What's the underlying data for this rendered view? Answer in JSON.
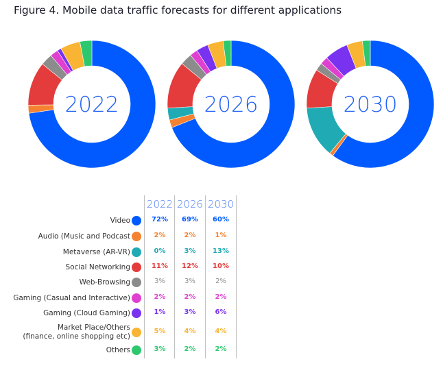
{
  "title": "Figure 4. Mobile data traffic forecasts for different applications",
  "chart_data": {
    "type": "pie",
    "variant": "donut",
    "title": "Figure 4. Mobile data traffic forecasts for different applications",
    "years": [
      "2022",
      "2026",
      "2030"
    ],
    "categories": [
      "Video",
      "Audio (Music and Podcast",
      "Metaverse (AR-VR)",
      "Social Networking",
      "Web-Browsing",
      "Gaming (Casual and Interactive)",
      "Gaming (Cloud Gaming)",
      "Market Place/Others (finance, online shopping etc)",
      "Others"
    ],
    "category_labels": [
      [
        "Video"
      ],
      [
        "Audio (Music and Podcast"
      ],
      [
        "Metaverse (AR-VR)"
      ],
      [
        "Social Networking"
      ],
      [
        "Web-Browsing"
      ],
      [
        "Gaming (Casual and Interactive)"
      ],
      [
        "Gaming (Cloud Gaming)"
      ],
      [
        "Market Place/Others",
        "(finance, online shopping etc)"
      ],
      [
        "Others"
      ]
    ],
    "colors": [
      "#005aff",
      "#f58232",
      "#20aab4",
      "#e43c3c",
      "#8c8c8c",
      "#e040d0",
      "#7832f0",
      "#f8b432",
      "#2dc86e"
    ],
    "series": [
      {
        "name": "2022",
        "values": [
          72,
          2,
          0,
          11,
          3,
          2,
          1,
          5,
          3
        ]
      },
      {
        "name": "2026",
        "values": [
          69,
          2,
          3,
          12,
          3,
          2,
          3,
          4,
          2
        ]
      },
      {
        "name": "2030",
        "values": [
          60,
          1,
          13,
          10,
          2,
          2,
          6,
          4,
          2
        ]
      }
    ],
    "unit": "%",
    "start_angle": "12 o'clock",
    "direction": "clockwise",
    "legend": "table below charts"
  }
}
